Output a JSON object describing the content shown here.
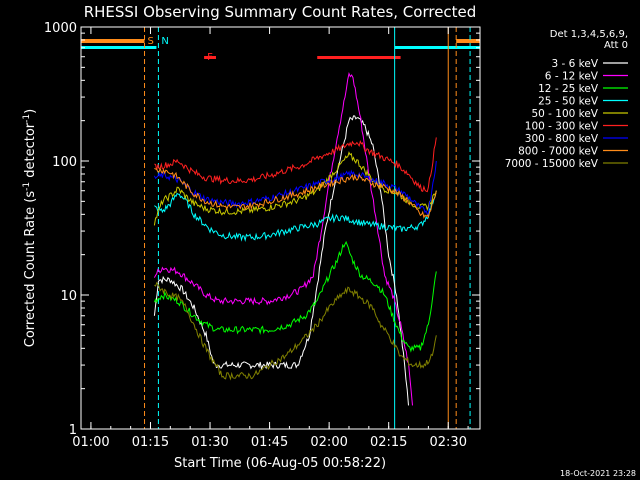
{
  "chart_data": {
    "type": "line",
    "title": "RHESSI Observing Summary Count Rates, Corrected",
    "xlabel": "Start Time (06-Aug-05 00:58:22)",
    "ylabel_main": "Corrected Count Rate (s",
    "ylabel_sup1": "-1",
    "ylabel_mid": " detector",
    "ylabel_sup2": "-1",
    "ylabel_end": ")",
    "yscale": "log",
    "ylim": [
      1,
      1000
    ],
    "xlim_minutes": [
      57.5,
      158.0
    ],
    "x_ticks": [
      {
        "m": 60,
        "label": "01:00"
      },
      {
        "m": 75,
        "label": "01:15"
      },
      {
        "m": 90,
        "label": "01:30"
      },
      {
        "m": 105,
        "label": "01:45"
      },
      {
        "m": 120,
        "label": "02:00"
      },
      {
        "m": 135,
        "label": "02:15"
      },
      {
        "m": 150,
        "label": "02:30"
      }
    ],
    "y_ticks": [
      {
        "v": 1,
        "label": "1"
      },
      {
        "v": 10,
        "label": "10"
      },
      {
        "v": 100,
        "label": "100"
      },
      {
        "v": 1000,
        "label": "1000"
      }
    ],
    "legend_header": [
      "Det 1,3,4,5,6,9,",
      "Att 0"
    ],
    "legend_position": "right",
    "footer_date": "18-Oct-2021 23:28",
    "flags": [
      {
        "label": "S",
        "color": "#ff8c1a",
        "m": 73.5
      },
      {
        "label": "N",
        "color": "#00ffff",
        "m": 77.0
      },
      {
        "label": "F",
        "color": "#ff2020",
        "m": 88.5
      }
    ],
    "flare_bars": [
      {
        "m0": 88.5,
        "m1": 91.5
      },
      {
        "m0": 117.0,
        "m1": 138.0
      }
    ],
    "night_bars": [
      {
        "m0": 57.5,
        "m1": 76.5
      },
      {
        "m0": 136.5,
        "m1": 158.0
      }
    ],
    "saa_bars": [
      {
        "m0": 57.5,
        "m1": 73.5
      },
      {
        "m0": 152.0,
        "m1": 158.0
      }
    ],
    "vlines": [
      {
        "m": 73.5,
        "color": "#ff8c1a",
        "style": "dash"
      },
      {
        "m": 77.0,
        "color": "#00ffff",
        "style": "dash"
      },
      {
        "m": 136.5,
        "color": "#00ffff",
        "style": "solid"
      },
      {
        "m": 150.0,
        "color": "#ff8c1a",
        "style": "solid"
      },
      {
        "m": 155.5,
        "color": "#00ffff",
        "style": "dash"
      },
      {
        "m": 152.0,
        "color": "#ff8c1a",
        "style": "dash"
      }
    ],
    "series": [
      {
        "name": "3 - 6 keV",
        "color": "#ffffff",
        "points": [
          [
            76,
            7
          ],
          [
            77,
            13
          ],
          [
            80,
            13
          ],
          [
            83,
            11
          ],
          [
            86,
            8
          ],
          [
            89,
            5
          ],
          [
            91,
            3
          ],
          [
            95,
            3
          ],
          [
            100,
            3
          ],
          [
            105,
            3
          ],
          [
            108,
            3
          ],
          [
            112,
            3
          ],
          [
            115,
            5
          ],
          [
            117,
            12
          ],
          [
            119,
            30
          ],
          [
            121,
            60
          ],
          [
            123,
            110
          ],
          [
            125,
            200
          ],
          [
            127,
            210
          ],
          [
            129,
            180
          ],
          [
            131,
            130
          ],
          [
            133,
            60
          ],
          [
            135,
            20
          ],
          [
            137,
            10
          ],
          [
            139,
            3
          ],
          [
            140,
            1.5
          ]
        ]
      },
      {
        "name": "6 - 12 keV",
        "color": "#ff00ff",
        "points": [
          [
            76,
            14
          ],
          [
            78,
            16
          ],
          [
            82,
            15
          ],
          [
            86,
            12
          ],
          [
            89,
            10
          ],
          [
            92,
            9
          ],
          [
            96,
            9
          ],
          [
            100,
            9
          ],
          [
            105,
            9
          ],
          [
            110,
            10
          ],
          [
            113,
            11
          ],
          [
            116,
            14
          ],
          [
            118,
            30
          ],
          [
            120,
            70
          ],
          [
            122,
            150
          ],
          [
            124,
            300
          ],
          [
            125,
            440
          ],
          [
            126,
            420
          ],
          [
            128,
            200
          ],
          [
            130,
            80
          ],
          [
            132,
            35
          ],
          [
            134,
            14
          ],
          [
            136,
            10
          ],
          [
            138,
            6
          ],
          [
            140,
            3
          ],
          [
            141,
            1.5
          ]
        ]
      },
      {
        "name": "12 - 25 keV",
        "color": "#00ff00",
        "points": [
          [
            76,
            9
          ],
          [
            78,
            10
          ],
          [
            82,
            9
          ],
          [
            86,
            7
          ],
          [
            89,
            6
          ],
          [
            92,
            5.5
          ],
          [
            96,
            5.5
          ],
          [
            100,
            5.5
          ],
          [
            105,
            5.5
          ],
          [
            110,
            6
          ],
          [
            114,
            7
          ],
          [
            117,
            9
          ],
          [
            120,
            14
          ],
          [
            122,
            18
          ],
          [
            124,
            25
          ],
          [
            126,
            18
          ],
          [
            128,
            14
          ],
          [
            130,
            13
          ],
          [
            132,
            12
          ],
          [
            134,
            10
          ],
          [
            136,
            7
          ],
          [
            138,
            5
          ],
          [
            140,
            4
          ],
          [
            143,
            4
          ],
          [
            145,
            6
          ],
          [
            147,
            15
          ]
        ]
      },
      {
        "name": "25 - 50 keV",
        "color": "#00ffff",
        "points": [
          [
            76,
            45
          ],
          [
            78,
            42
          ],
          [
            80,
            48
          ],
          [
            82,
            58
          ],
          [
            84,
            50
          ],
          [
            86,
            40
          ],
          [
            88,
            35
          ],
          [
            90,
            31
          ],
          [
            93,
            28
          ],
          [
            97,
            27
          ],
          [
            101,
            27
          ],
          [
            105,
            28
          ],
          [
            109,
            30
          ],
          [
            113,
            32
          ],
          [
            117,
            34
          ],
          [
            120,
            37
          ],
          [
            123,
            38
          ],
          [
            126,
            36
          ],
          [
            129,
            34
          ],
          [
            132,
            33
          ],
          [
            135,
            32
          ],
          [
            138,
            31
          ],
          [
            141,
            32
          ],
          [
            143,
            33
          ],
          [
            145,
            40
          ],
          [
            147,
            60
          ]
        ]
      },
      {
        "name": "50 - 100 keV",
        "color": "#c8c800",
        "points": [
          [
            76,
            35
          ],
          [
            78,
            50
          ],
          [
            80,
            55
          ],
          [
            82,
            62
          ],
          [
            84,
            54
          ],
          [
            86,
            48
          ],
          [
            89,
            44
          ],
          [
            93,
            42
          ],
          [
            97,
            42
          ],
          [
            101,
            43
          ],
          [
            105,
            45
          ],
          [
            109,
            48
          ],
          [
            113,
            52
          ],
          [
            117,
            60
          ],
          [
            120,
            75
          ],
          [
            123,
            95
          ],
          [
            125,
            110
          ],
          [
            127,
            100
          ],
          [
            129,
            85
          ],
          [
            131,
            72
          ],
          [
            134,
            62
          ],
          [
            137,
            58
          ],
          [
            140,
            50
          ],
          [
            143,
            45
          ],
          [
            145,
            46
          ],
          [
            147,
            60
          ]
        ]
      },
      {
        "name": "100 - 300 keV",
        "color": "#ff2020",
        "points": [
          [
            76,
            90
          ],
          [
            78,
            92
          ],
          [
            80,
            95
          ],
          [
            82,
            100
          ],
          [
            84,
            90
          ],
          [
            86,
            82
          ],
          [
            89,
            75
          ],
          [
            93,
            72
          ],
          [
            97,
            71
          ],
          [
            101,
            73
          ],
          [
            105,
            78
          ],
          [
            109,
            85
          ],
          [
            113,
            92
          ],
          [
            117,
            105
          ],
          [
            120,
            115
          ],
          [
            123,
            125
          ],
          [
            125,
            135
          ],
          [
            127,
            140
          ],
          [
            129,
            125
          ],
          [
            131,
            115
          ],
          [
            134,
            105
          ],
          [
            137,
            95
          ],
          [
            140,
            80
          ],
          [
            143,
            63
          ],
          [
            145,
            62
          ],
          [
            147,
            150
          ]
        ]
      },
      {
        "name": "300 - 800 keV",
        "color": "#0000ff",
        "points": [
          [
            76,
            75
          ],
          [
            78,
            78
          ],
          [
            80,
            76
          ],
          [
            82,
            72
          ],
          [
            84,
            65
          ],
          [
            86,
            58
          ],
          [
            89,
            52
          ],
          [
            93,
            49
          ],
          [
            97,
            48
          ],
          [
            101,
            50
          ],
          [
            105,
            53
          ],
          [
            109,
            57
          ],
          [
            113,
            62
          ],
          [
            117,
            68
          ],
          [
            120,
            72
          ],
          [
            123,
            76
          ],
          [
            125,
            80
          ],
          [
            127,
            80
          ],
          [
            129,
            76
          ],
          [
            131,
            72
          ],
          [
            134,
            68
          ],
          [
            137,
            62
          ],
          [
            140,
            54
          ],
          [
            143,
            44
          ],
          [
            145,
            42
          ],
          [
            147,
            100
          ]
        ]
      },
      {
        "name": "800 - 7000 keV",
        "color": "#ff8c1a",
        "points": [
          [
            76,
            85
          ],
          [
            78,
            86
          ],
          [
            80,
            82
          ],
          [
            82,
            75
          ],
          [
            84,
            65
          ],
          [
            86,
            57
          ],
          [
            89,
            50
          ],
          [
            93,
            46
          ],
          [
            97,
            45
          ],
          [
            101,
            47
          ],
          [
            105,
            50
          ],
          [
            109,
            54
          ],
          [
            113,
            58
          ],
          [
            117,
            64
          ],
          [
            120,
            68
          ],
          [
            123,
            72
          ],
          [
            125,
            75
          ],
          [
            127,
            76
          ],
          [
            129,
            72
          ],
          [
            131,
            68
          ],
          [
            134,
            64
          ],
          [
            137,
            58
          ],
          [
            140,
            50
          ],
          [
            143,
            40
          ],
          [
            145,
            38
          ],
          [
            147,
            60
          ]
        ]
      },
      {
        "name": "7000 - 15000 keV",
        "color": "#808000",
        "points": [
          [
            76,
            12
          ],
          [
            78,
            11
          ],
          [
            80,
            10
          ],
          [
            82,
            9.5
          ],
          [
            84,
            8
          ],
          [
            86,
            6
          ],
          [
            88,
            4.5
          ],
          [
            90,
            3.5
          ],
          [
            93,
            2.5
          ],
          [
            97,
            2.5
          ],
          [
            101,
            2.5
          ],
          [
            105,
            3
          ],
          [
            109,
            3.5
          ],
          [
            113,
            4.5
          ],
          [
            117,
            6
          ],
          [
            120,
            8
          ],
          [
            123,
            10
          ],
          [
            125,
            11
          ],
          [
            127,
            10
          ],
          [
            129,
            9
          ],
          [
            131,
            8
          ],
          [
            133,
            6
          ],
          [
            135,
            5
          ],
          [
            138,
            3.5
          ],
          [
            141,
            3
          ],
          [
            144,
            3
          ],
          [
            146,
            3.5
          ],
          [
            147,
            5
          ]
        ]
      }
    ]
  }
}
